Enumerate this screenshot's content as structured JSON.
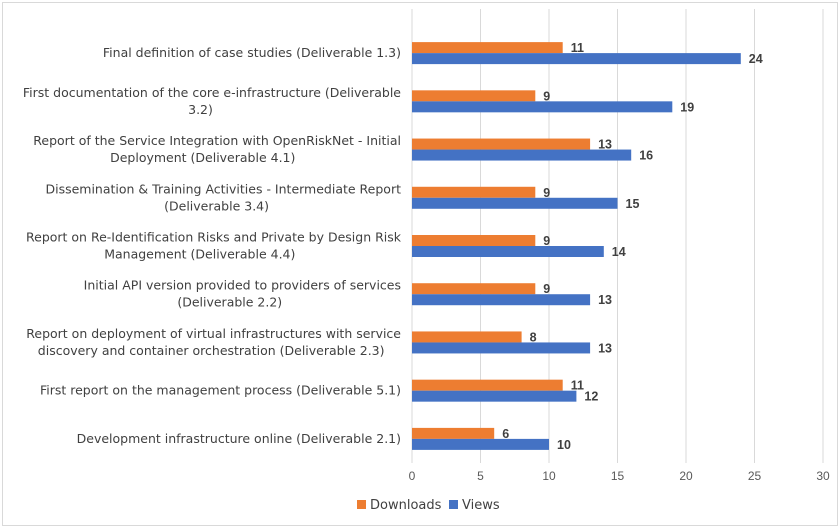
{
  "colors": {
    "downloads": "#ED7D31",
    "views": "#4472C4",
    "grid": "#d9d9d9",
    "text": "#404040"
  },
  "chart_data": {
    "type": "bar",
    "orientation": "horizontal",
    "categories": [
      "Final definition of case studies (Deliverable 1.3)",
      "First documentation of the core e-infrastructure (Deliverable 3.2)",
      "Report of the Service Integration with OpenRiskNet - Initial Deployment (Deliverable 4.1)",
      "Dissemination & Training Activities - Intermediate Report (Deliverable 3.4)",
      "Report on Re-Identification Risks and Private by Design Risk Management (Deliverable 4.4)",
      "Initial API version provided to providers of services (Deliverable 2.2)",
      "Report on deployment of virtual infrastructures with service discovery and container orchestration (Deliverable 2.3)",
      "First report on the management process (Deliverable 5.1)",
      "Development infrastructure online (Deliverable 2.1)"
    ],
    "category_lines": [
      [
        "Final definition of case studies (Deliverable 1.3)"
      ],
      [
        "First documentation of the core e-infrastructure (Deliverable",
        "3.2)"
      ],
      [
        "Report of the Service Integration with OpenRiskNet - Initial",
        "Deployment (Deliverable 4.1)"
      ],
      [
        "Dissemination & Training Activities - Intermediate Report",
        "(Deliverable 3.4)"
      ],
      [
        "Report on Re-Identification Risks and Private by Design Risk",
        "Management (Deliverable 4.4)"
      ],
      [
        "Initial API version provided to providers of services",
        "(Deliverable 2.2)"
      ],
      [
        "Report on deployment of virtual infrastructures with service",
        "discovery and container orchestration (Deliverable 2.3)"
      ],
      [
        "First report on the management process (Deliverable 5.1)"
      ],
      [
        "Development infrastructure online (Deliverable 2.1)"
      ]
    ],
    "series": [
      {
        "name": "Downloads",
        "values": [
          11,
          9,
          13,
          9,
          9,
          9,
          8,
          11,
          6
        ]
      },
      {
        "name": "Views",
        "values": [
          24,
          19,
          16,
          15,
          14,
          13,
          13,
          12,
          10
        ]
      }
    ],
    "xlim": [
      0,
      30
    ],
    "xticks": [
      0,
      5,
      10,
      15,
      20,
      25,
      30
    ],
    "grid": true,
    "legend_position": "bottom"
  }
}
